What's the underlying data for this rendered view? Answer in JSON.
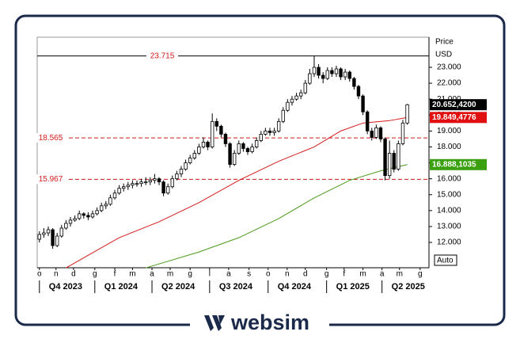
{
  "chart_data": {
    "type": "candlestick",
    "y_label": "Price",
    "y_unit": "USD",
    "button": "Auto",
    "ylim": [
      10.41,
      24.89
    ],
    "yticks": [
      {
        "value": 12,
        "label": "12.000"
      },
      {
        "value": 13,
        "label": "13.000"
      },
      {
        "value": 14,
        "label": "14.000"
      },
      {
        "value": 15,
        "label": "15.000"
      },
      {
        "value": 16,
        "label": "16.000"
      },
      {
        "value": 17,
        "label": "17.000"
      },
      {
        "value": 18,
        "label": "18.000"
      },
      {
        "value": 19,
        "label": "19.000"
      },
      {
        "value": 20,
        "label": "20.000"
      },
      {
        "value": 21,
        "label": "21.000"
      },
      {
        "value": 22,
        "label": "22.000"
      },
      {
        "value": 23,
        "label": "23.000"
      }
    ],
    "xlim": [
      -0.5,
      87.9
    ],
    "xticks": [
      {
        "value": 0,
        "label": "o"
      },
      {
        "value": 3.75,
        "label": "n"
      },
      {
        "value": 7.7,
        "label": "d"
      },
      {
        "value": 12.5,
        "label": "g"
      },
      {
        "value": 17,
        "label": "f"
      },
      {
        "value": 21,
        "label": "m"
      },
      {
        "value": 25.4,
        "label": "a"
      },
      {
        "value": 29.5,
        "label": "m"
      },
      {
        "value": 34,
        "label": "g"
      },
      {
        "value": 38.4,
        "label": "l"
      },
      {
        "value": 42.7,
        "label": "a"
      },
      {
        "value": 47.3,
        "label": "s"
      },
      {
        "value": 51.6,
        "label": "o"
      },
      {
        "value": 55.9,
        "label": "n"
      },
      {
        "value": 60,
        "label": "d"
      },
      {
        "value": 64.8,
        "label": "g"
      },
      {
        "value": 68.75,
        "label": "f"
      },
      {
        "value": 73,
        "label": "m"
      },
      {
        "value": 77.3,
        "label": "a"
      },
      {
        "value": 81.25,
        "label": "m"
      },
      {
        "value": 85.9,
        "label": "g"
      }
    ],
    "periods": [
      {
        "value": 0,
        "label": "Q4 2023"
      },
      {
        "value": 12.5,
        "label": "Q1 2024"
      },
      {
        "value": 25.4,
        "label": "Q2 2024"
      },
      {
        "value": 38.4,
        "label": "Q3 2024"
      },
      {
        "value": 51.6,
        "label": "Q4 2024"
      },
      {
        "value": 64.8,
        "label": "Q1 2025"
      },
      {
        "value": 77.3,
        "label": "Q2 2025"
      }
    ],
    "open": [
      12.2,
      12.5,
      12.6,
      12.8,
      11.8,
      12.4,
      12.9,
      13.2,
      13.4,
      13.5,
      13.8,
      13.7,
      13.6,
      13.8,
      14.0,
      14.3,
      14.4,
      14.8,
      15.1,
      15.4,
      15.5,
      15.6,
      15.7,
      15.7,
      15.8,
      15.8,
      15.9,
      16.0,
      15.8,
      15.1,
      15.5,
      16.0,
      16.3,
      16.6,
      17.0,
      17.3,
      17.6,
      18.0,
      18.3,
      18.0,
      19.6,
      19.3,
      18.8,
      18.2,
      16.9,
      17.6,
      18.2,
      17.9,
      17.7,
      18.0,
      18.4,
      18.8,
      19.0,
      18.9,
      19.0,
      19.6,
      20.3,
      20.8,
      21.0,
      21.2,
      21.4,
      22.0,
      22.6,
      23.0,
      22.5,
      22.3,
      22.8,
      22.6,
      22.9,
      22.4,
      22.7,
      22.3,
      21.8,
      21.2,
      20.2,
      19.0,
      18.6,
      19.2,
      18.5,
      16.2,
      17.6,
      16.6,
      18.2,
      19.5
    ],
    "high": [
      12.7,
      12.9,
      13.0,
      12.9,
      12.6,
      13.1,
      13.4,
      13.6,
      13.7,
      14.0,
      13.9,
      13.9,
      14.0,
      14.2,
      14.5,
      14.6,
      15.0,
      15.3,
      15.6,
      15.7,
      15.8,
      15.9,
      15.9,
      16.0,
      16.1,
      16.1,
      16.3,
      16.1,
      15.9,
      15.7,
      16.2,
      16.5,
      16.8,
      17.2,
      17.5,
      17.8,
      18.2,
      18.6,
      18.4,
      20.1,
      19.8,
      19.4,
      18.9,
      18.3,
      17.8,
      18.4,
      18.3,
      18.0,
      18.2,
      18.6,
      19.0,
      19.2,
      19.2,
      19.2,
      19.8,
      20.5,
      21.0,
      21.2,
      21.4,
      21.6,
      22.2,
      22.9,
      23.7,
      23.2,
      22.7,
      23.0,
      23.0,
      23.1,
      23.0,
      22.9,
      22.8,
      22.4,
      21.9,
      21.3,
      20.3,
      19.2,
      19.4,
      19.3,
      18.6,
      18.4,
      17.8,
      18.4,
      19.7,
      20.7
    ],
    "low": [
      12.0,
      12.3,
      12.4,
      11.6,
      11.7,
      12.3,
      12.8,
      13.0,
      13.3,
      13.4,
      13.5,
      13.4,
      13.5,
      13.7,
      13.9,
      14.1,
      14.3,
      14.7,
      15.0,
      15.2,
      15.3,
      15.4,
      15.5,
      15.5,
      15.6,
      15.6,
      15.7,
      15.6,
      14.9,
      15.0,
      15.4,
      15.9,
      16.1,
      16.5,
      16.9,
      17.2,
      17.5,
      17.9,
      17.8,
      17.9,
      19.0,
      18.6,
      18.0,
      16.7,
      16.8,
      17.5,
      17.7,
      17.5,
      17.6,
      17.9,
      18.3,
      18.7,
      18.7,
      18.7,
      18.9,
      19.5,
      20.2,
      20.6,
      20.9,
      21.0,
      21.3,
      21.9,
      22.4,
      22.3,
      22.0,
      22.2,
      22.4,
      22.4,
      22.2,
      22.2,
      22.1,
      21.6,
      21.0,
      20.0,
      18.8,
      18.4,
      18.5,
      18.3,
      15.9,
      16.0,
      16.4,
      16.5,
      18.1,
      19.4
    ],
    "close": [
      12.5,
      12.6,
      12.8,
      11.8,
      12.4,
      12.9,
      13.2,
      13.4,
      13.5,
      13.8,
      13.7,
      13.6,
      13.8,
      14.0,
      14.3,
      14.4,
      14.8,
      15.1,
      15.4,
      15.5,
      15.6,
      15.7,
      15.7,
      15.8,
      15.8,
      15.9,
      16.0,
      15.8,
      15.1,
      15.5,
      16.0,
      16.3,
      16.6,
      17.0,
      17.3,
      17.6,
      18.0,
      18.3,
      18.0,
      19.6,
      19.3,
      18.8,
      18.2,
      16.9,
      17.6,
      18.2,
      17.9,
      17.7,
      18.0,
      18.4,
      18.8,
      19.0,
      18.9,
      19.0,
      19.6,
      20.3,
      20.8,
      21.0,
      21.2,
      21.4,
      22.0,
      22.6,
      23.0,
      22.5,
      22.3,
      22.8,
      22.6,
      22.9,
      22.4,
      22.7,
      22.3,
      21.8,
      21.2,
      20.2,
      19.0,
      18.6,
      19.2,
      18.5,
      16.2,
      17.6,
      16.6,
      18.2,
      19.5,
      20.65
    ],
    "series": [
      {
        "color": "#d41a1a",
        "x": [
          6,
          18,
          27,
          36,
          45,
          54,
          62,
          68,
          73,
          79,
          83
        ],
        "values": [
          10.4,
          12.3,
          13.3,
          14.5,
          15.9,
          17.1,
          18.0,
          19.0,
          19.5,
          19.65,
          19.85
        ]
      },
      {
        "color": "#4a9a1a",
        "x": [
          24,
          36,
          45,
          54,
          62,
          70,
          77,
          83
        ],
        "values": [
          10.4,
          11.4,
          12.3,
          13.5,
          14.8,
          15.9,
          16.5,
          16.89
        ]
      }
    ],
    "levels": [
      {
        "value": 23.715,
        "color": "#000000",
        "style": "solid",
        "position": "center"
      },
      {
        "value": 18.565,
        "color": "#d41a1a",
        "style": "dashed",
        "position": "left"
      },
      {
        "value": 15.967,
        "color": "#d41a1a",
        "style": "dashed",
        "position": "left"
      }
    ],
    "price_labels": [
      {
        "value": 20.65242,
        "label": "20.652,4200",
        "color": "#000000"
      },
      {
        "value": 19.8494776,
        "label": "19.849,4776",
        "color": "#e01010"
      },
      {
        "value": 16.8881035,
        "label": "16.888,1035",
        "color": "#3aa010"
      }
    ]
  },
  "logo": {
    "text": "websim"
  }
}
